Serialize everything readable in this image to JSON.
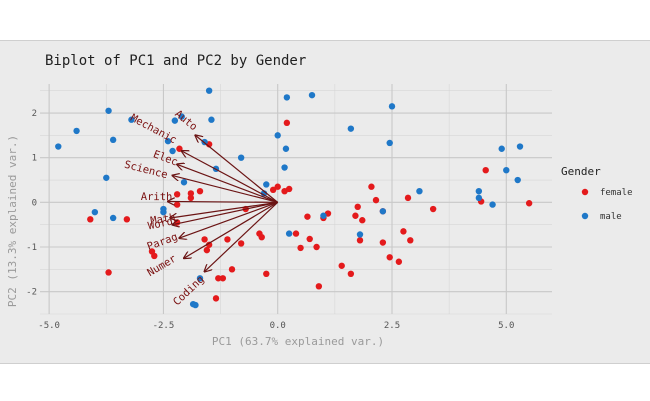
{
  "chart_data": {
    "type": "scatter",
    "title": "Biplot of PC1 and PC2 by Gender",
    "xlabel": "PC1 (63.7% explained var.)",
    "ylabel": "PC2 (13.3% explained var.)",
    "xlim": [
      -5.2,
      6.0
    ],
    "ylim": [
      -2.5,
      2.65
    ],
    "x_ticks": [
      -5.0,
      -2.5,
      0.0,
      2.5,
      5.0
    ],
    "x_tick_labels": [
      "-5.0",
      "-2.5",
      "0.0",
      "2.5",
      "5.0"
    ],
    "y_ticks": [
      -2,
      -1,
      0,
      1,
      2
    ],
    "y_tick_labels": [
      "-2",
      "-1",
      "0",
      "1",
      "2"
    ],
    "grid": true,
    "legend": {
      "title": "Gender",
      "position": "right",
      "entries": [
        {
          "name": "female",
          "color": "#e41a1c"
        },
        {
          "name": "male",
          "color": "#1f78c8"
        }
      ]
    },
    "arrow_color": "#6b1414",
    "label_color": "#7a1010",
    "loadings": [
      {
        "name": "Auto",
        "x": -1.8,
        "y": 1.5,
        "lx": -2.05,
        "ly": 1.78
      },
      {
        "name": "Mechanic",
        "x": -2.1,
        "y": 1.15,
        "lx": -2.75,
        "ly": 1.58
      },
      {
        "name": "Elec",
        "x": -2.2,
        "y": 0.85,
        "lx": -2.48,
        "ly": 0.92
      },
      {
        "name": "Science",
        "x": -2.3,
        "y": 0.6,
        "lx": -2.9,
        "ly": 0.66
      },
      {
        "name": "Arith",
        "x": -2.4,
        "y": 0.02,
        "lx": -2.65,
        "ly": 0.05
      },
      {
        "name": "Math",
        "x": -2.35,
        "y": -0.35,
        "lx": -2.5,
        "ly": -0.45
      },
      {
        "name": "Word",
        "x": -2.3,
        "y": -0.5,
        "lx": -2.55,
        "ly": -0.55
      },
      {
        "name": "Parag",
        "x": -2.15,
        "y": -0.8,
        "lx": -2.5,
        "ly": -0.95
      },
      {
        "name": "Numer",
        "x": -2.05,
        "y": -1.25,
        "lx": -2.5,
        "ly": -1.48
      },
      {
        "name": "Coding",
        "x": -1.6,
        "y": -1.55,
        "lx": -1.9,
        "ly": -2.03
      }
    ],
    "series": [
      {
        "name": "female",
        "color": "#e41a1c",
        "points": [
          [
            -4.1,
            -0.38
          ],
          [
            -3.7,
            -1.57
          ],
          [
            -3.3,
            -0.38
          ],
          [
            -2.75,
            -1.1
          ],
          [
            -2.7,
            -1.2
          ],
          [
            -2.2,
            0.18
          ],
          [
            -2.2,
            -0.05
          ],
          [
            -2.2,
            -0.45
          ],
          [
            -1.9,
            0.1
          ],
          [
            -1.9,
            0.2
          ],
          [
            -1.7,
            0.25
          ],
          [
            -1.6,
            -0.83
          ],
          [
            -1.55,
            -1.07
          ],
          [
            -1.5,
            -0.95
          ],
          [
            -1.3,
            -1.7
          ],
          [
            -1.2,
            -1.7
          ],
          [
            -1.1,
            -0.83
          ],
          [
            -1.0,
            -1.5
          ],
          [
            -0.8,
            -0.92
          ],
          [
            -0.7,
            -0.15
          ],
          [
            -0.4,
            -0.7
          ],
          [
            -0.35,
            -0.78
          ],
          [
            -0.25,
            -1.6
          ],
          [
            -0.1,
            0.28
          ],
          [
            0.0,
            0.35
          ],
          [
            0.15,
            0.25
          ],
          [
            0.2,
            1.78
          ],
          [
            0.25,
            0.3
          ],
          [
            0.4,
            -0.7
          ],
          [
            0.5,
            -1.02
          ],
          [
            0.65,
            -0.32
          ],
          [
            0.7,
            -0.82
          ],
          [
            0.85,
            -1.0
          ],
          [
            0.9,
            -1.88
          ],
          [
            1.0,
            -0.35
          ],
          [
            1.1,
            -0.25
          ],
          [
            1.4,
            -1.42
          ],
          [
            1.6,
            -1.6
          ],
          [
            1.7,
            -0.3
          ],
          [
            1.75,
            -0.1
          ],
          [
            1.8,
            -0.85
          ],
          [
            1.85,
            -0.4
          ],
          [
            2.05,
            0.35
          ],
          [
            2.15,
            0.05
          ],
          [
            2.3,
            -0.9
          ],
          [
            2.3,
            -0.2
          ],
          [
            2.45,
            -1.23
          ],
          [
            2.65,
            -1.33
          ],
          [
            2.75,
            -0.65
          ],
          [
            2.85,
            0.1
          ],
          [
            2.9,
            -0.85
          ],
          [
            3.4,
            -0.15
          ],
          [
            4.45,
            0.02
          ],
          [
            4.55,
            0.72
          ],
          [
            5.5,
            -0.02
          ],
          [
            -1.35,
            -2.15
          ],
          [
            -1.5,
            1.3
          ],
          [
            -2.15,
            1.2
          ]
        ]
      },
      {
        "name": "male",
        "color": "#1f78c8",
        "points": [
          [
            -4.8,
            1.25
          ],
          [
            -4.4,
            1.6
          ],
          [
            -4.0,
            -0.22
          ],
          [
            -3.7,
            2.05
          ],
          [
            -3.75,
            0.55
          ],
          [
            -3.6,
            1.4
          ],
          [
            -3.6,
            -0.35
          ],
          [
            -3.2,
            1.85
          ],
          [
            -2.5,
            -0.15
          ],
          [
            -2.5,
            -0.22
          ],
          [
            -2.4,
            1.37
          ],
          [
            -2.3,
            1.15
          ],
          [
            -2.25,
            1.83
          ],
          [
            -2.1,
            1.92
          ],
          [
            -2.05,
            0.45
          ],
          [
            -1.85,
            -2.28
          ],
          [
            -1.7,
            -1.7
          ],
          [
            -1.6,
            1.35
          ],
          [
            -1.5,
            2.5
          ],
          [
            -1.45,
            1.85
          ],
          [
            -1.35,
            0.75
          ],
          [
            -0.8,
            1.0
          ],
          [
            -0.3,
            0.2
          ],
          [
            -0.25,
            0.4
          ],
          [
            0.0,
            1.5
          ],
          [
            0.15,
            0.78
          ],
          [
            0.18,
            1.2
          ],
          [
            0.2,
            2.35
          ],
          [
            0.25,
            -0.7
          ],
          [
            0.75,
            2.4
          ],
          [
            1.0,
            -0.3
          ],
          [
            1.6,
            1.65
          ],
          [
            1.8,
            -0.72
          ],
          [
            2.3,
            -0.2
          ],
          [
            2.45,
            1.33
          ],
          [
            2.5,
            2.15
          ],
          [
            3.1,
            0.25
          ],
          [
            4.4,
            0.25
          ],
          [
            4.4,
            0.1
          ],
          [
            4.7,
            -0.05
          ],
          [
            4.9,
            1.2
          ],
          [
            5.0,
            0.72
          ],
          [
            5.25,
            0.5
          ],
          [
            5.3,
            1.25
          ],
          [
            -1.8,
            -2.3
          ]
        ]
      }
    ]
  }
}
